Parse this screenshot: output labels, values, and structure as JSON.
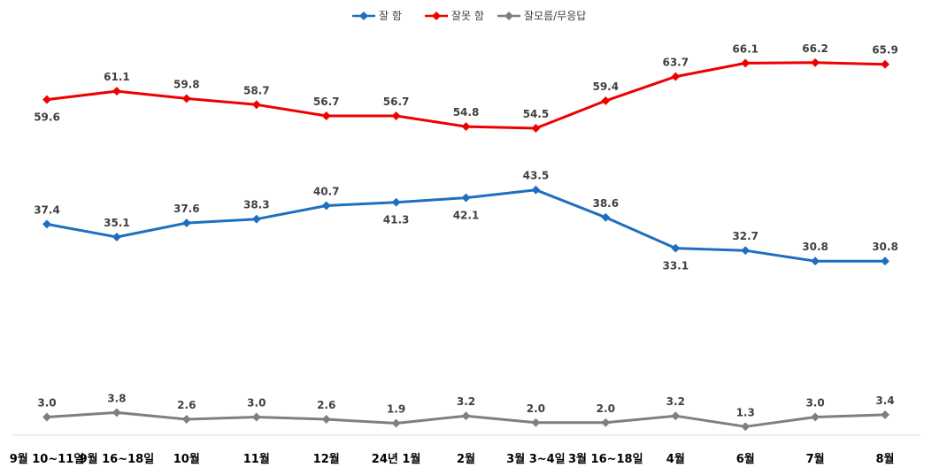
{
  "chart_data": {
    "type": "line",
    "title": "",
    "xlabel": "",
    "ylabel": "",
    "ylim": [
      0,
      70
    ],
    "grid": false,
    "legend_position": "top-center",
    "categories": [
      "9월 10~11일",
      "9월 16~18일",
      "10월",
      "11월",
      "12월",
      "24년 1월",
      "2월",
      "3월 3~4일",
      "3월 16~18일",
      "4월",
      "6월",
      "7월",
      "8월"
    ],
    "series": [
      {
        "name": "잘 함",
        "color": "#1f6fbf",
        "values": [
          37.4,
          35.1,
          37.6,
          38.3,
          40.7,
          41.3,
          42.1,
          43.5,
          38.6,
          33.1,
          32.7,
          30.8,
          30.8
        ],
        "labels": [
          "37.4",
          "35.1",
          "37.6",
          "38.3",
          "40.7",
          "41.3",
          "42.1",
          "43.5",
          "38.6",
          "33.1",
          "32.7",
          "30.8",
          "30.8"
        ]
      },
      {
        "name": "잘못 함",
        "color": "#ee0000",
        "values": [
          59.6,
          61.1,
          59.8,
          58.7,
          56.7,
          56.7,
          54.8,
          54.5,
          59.4,
          63.7,
          66.1,
          66.2,
          65.9
        ],
        "labels": [
          "59.6",
          "61.1",
          "59.8",
          "58.7",
          "56.7",
          "56.7",
          "54.8",
          "54.5",
          "59.4",
          "63.7",
          "66.1",
          "66.2",
          "65.9"
        ]
      },
      {
        "name": "잘모름/무응답",
        "color": "#7f7f7f",
        "values": [
          3.0,
          3.8,
          2.6,
          3.0,
          2.6,
          1.9,
          3.2,
          2.0,
          2.0,
          3.2,
          1.3,
          3.0,
          3.4
        ],
        "labels": [
          "3.0",
          "3.8",
          "2.6",
          "3.0",
          "2.6",
          "1.9",
          "3.2",
          "2.0",
          "2.0",
          "3.2",
          "1.3",
          "3.0",
          "3.4"
        ]
      }
    ]
  }
}
